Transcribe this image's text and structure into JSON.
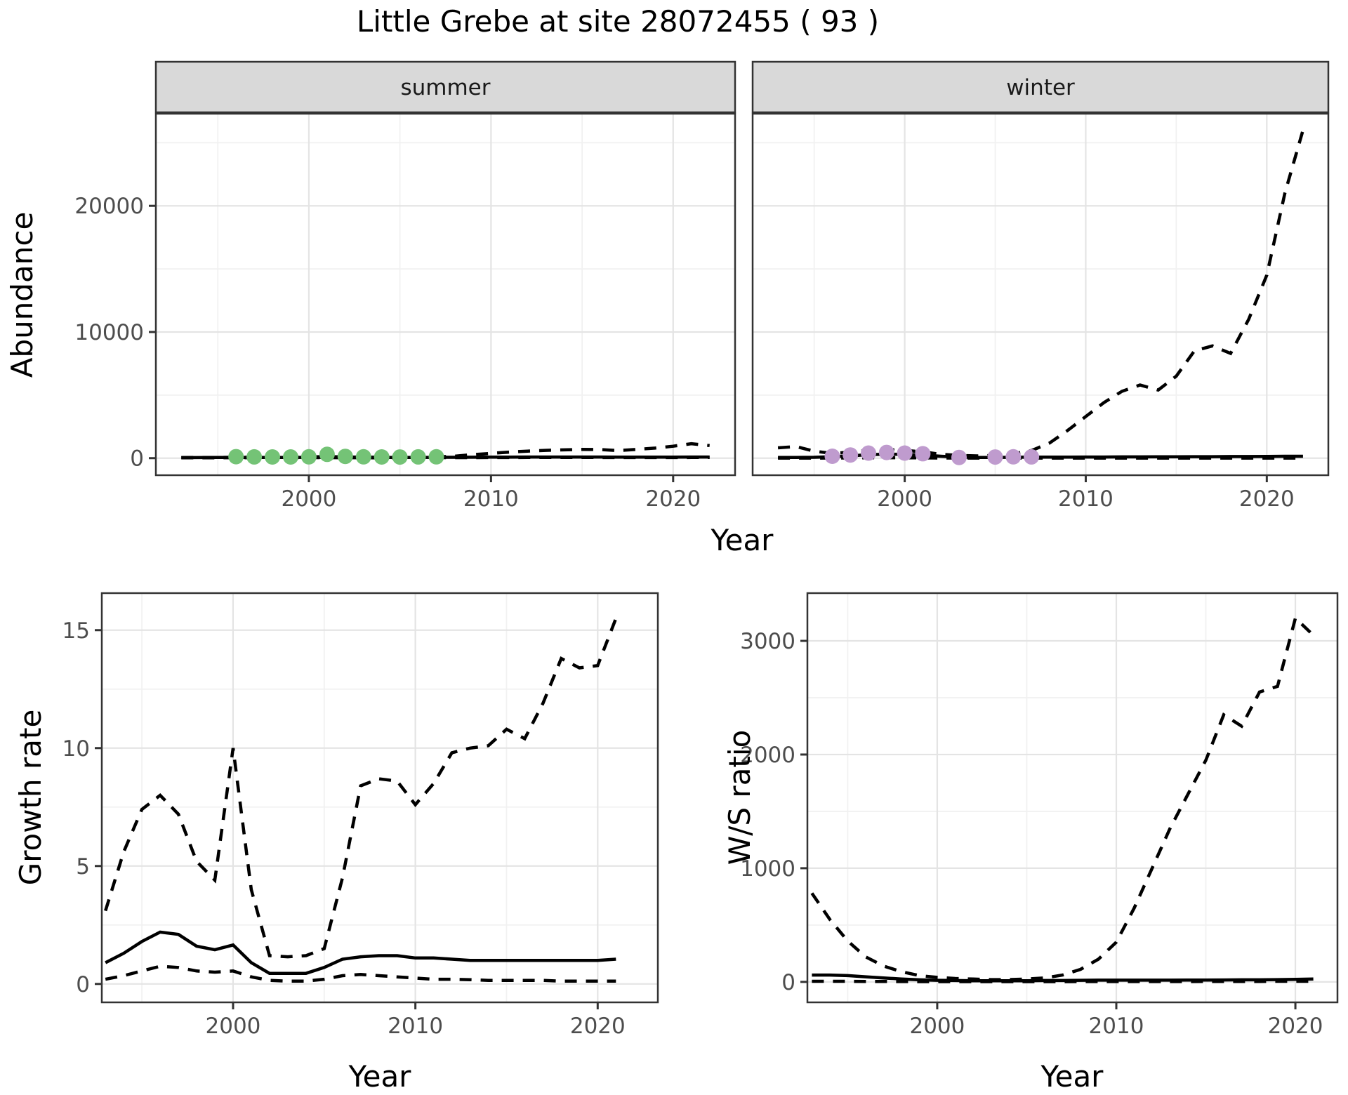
{
  "title": "Little Grebe at site 28072455 ( 93 )",
  "colors": {
    "summer_points": "#74c376",
    "winter_points": "#bf9bce",
    "line": "#000000",
    "grid_major": "#e4e4e4",
    "grid_minor": "#f1f1f1",
    "panel_border": "#333333",
    "strip_bg": "#d9d9d9",
    "tick_text": "#4d4d4d",
    "title_text": "#000000"
  },
  "chart_data": [
    {
      "id": "abundance-summer",
      "type": "line",
      "facet_label": "summer",
      "xlabel": "Year",
      "ylabel": "Abundance",
      "x_ticks": [
        2000,
        2010,
        2020
      ],
      "x_minor": [
        1995,
        2005,
        2015
      ],
      "y_ticks": [
        0,
        10000,
        20000
      ],
      "y_minor": [
        5000,
        15000,
        25000
      ],
      "xlim": [
        1991.6,
        2023.4
      ],
      "ylim": [
        -1350,
        27300
      ],
      "series": [
        {
          "name": "median",
          "style": "solid",
          "years": [
            1993,
            1994,
            1995,
            1996,
            1997,
            1998,
            1999,
            2000,
            2001,
            2002,
            2003,
            2004,
            2005,
            2006,
            2007,
            2008,
            2009,
            2010,
            2011,
            2012,
            2013,
            2014,
            2015,
            2016,
            2017,
            2018,
            2019,
            2020,
            2021,
            2022
          ],
          "values": [
            40,
            45,
            50,
            55,
            60,
            60,
            60,
            65,
            70,
            60,
            55,
            55,
            55,
            60,
            65,
            70,
            75,
            80,
            85,
            90,
            90,
            90,
            90,
            90,
            85,
            85,
            85,
            85,
            90,
            90
          ]
        },
        {
          "name": "upper-ci",
          "style": "dashed",
          "years": [
            1993,
            1994,
            1995,
            1996,
            1997,
            1998,
            1999,
            2000,
            2001,
            2002,
            2003,
            2004,
            2005,
            2006,
            2007,
            2008,
            2009,
            2010,
            2011,
            2012,
            2013,
            2014,
            2015,
            2016,
            2017,
            2018,
            2019,
            2020,
            2021,
            2022
          ],
          "values": [
            45,
            55,
            60,
            70,
            75,
            80,
            80,
            90,
            130,
            90,
            75,
            75,
            75,
            85,
            95,
            160,
            280,
            380,
            480,
            560,
            620,
            660,
            700,
            680,
            600,
            700,
            800,
            950,
            1150,
            1000
          ]
        },
        {
          "name": "lower-ci",
          "style": "dashed",
          "years": [
            1993,
            1994,
            1995,
            1996,
            1997,
            1998,
            1999,
            2000,
            2001,
            2002,
            2003,
            2004,
            2005,
            2006,
            2007,
            2008,
            2009,
            2010,
            2011,
            2012,
            2013,
            2014,
            2015,
            2016,
            2017,
            2018,
            2019,
            2020,
            2021,
            2022
          ],
          "values": [
            25,
            28,
            30,
            33,
            35,
            35,
            35,
            38,
            40,
            35,
            32,
            32,
            32,
            35,
            38,
            40,
            42,
            45,
            48,
            50,
            50,
            50,
            50,
            50,
            48,
            48,
            48,
            48,
            50,
            50
          ]
        }
      ],
      "points": {
        "name": "observed-counts-summer",
        "color_key": "summer_points",
        "years": [
          1996,
          1997,
          1998,
          1999,
          2000,
          2001,
          2002,
          2003,
          2004,
          2005,
          2006,
          2007
        ],
        "values": [
          120,
          100,
          95,
          95,
          105,
          300,
          140,
          105,
          95,
          90,
          100,
          110
        ]
      }
    },
    {
      "id": "abundance-winter",
      "type": "line",
      "facet_label": "winter",
      "xlabel": "Year",
      "ylabel": "Abundance",
      "x_ticks": [
        2000,
        2010,
        2020
      ],
      "x_minor": [
        1995,
        2005,
        2015
      ],
      "y_ticks": [
        0,
        10000,
        20000
      ],
      "y_minor": [
        5000,
        15000,
        25000
      ],
      "xlim": [
        1991.6,
        2023.4
      ],
      "ylim": [
        -1350,
        27300
      ],
      "series": [
        {
          "name": "median",
          "style": "solid",
          "years": [
            1993,
            1994,
            1995,
            1996,
            1997,
            1998,
            1999,
            2000,
            2001,
            2002,
            2003,
            2004,
            2005,
            2006,
            2007,
            2008,
            2009,
            2010,
            2011,
            2012,
            2013,
            2014,
            2015,
            2016,
            2017,
            2018,
            2019,
            2020,
            2021,
            2022
          ],
          "values": [
            50,
            60,
            70,
            120,
            180,
            280,
            320,
            300,
            250,
            150,
            80,
            60,
            60,
            70,
            80,
            80,
            80,
            90,
            90,
            100,
            100,
            110,
            110,
            120,
            120,
            130,
            130,
            140,
            150,
            150
          ]
        },
        {
          "name": "upper-ci",
          "style": "dashed",
          "years": [
            1993,
            1994,
            1995,
            1996,
            1997,
            1998,
            1999,
            2000,
            2001,
            2002,
            2003,
            2004,
            2005,
            2006,
            2007,
            2008,
            2009,
            2010,
            2011,
            2012,
            2013,
            2014,
            2015,
            2016,
            2017,
            2018,
            2019,
            2020,
            2021,
            2022
          ],
          "values": [
            820,
            920,
            550,
            380,
            480,
            620,
            680,
            620,
            500,
            300,
            220,
            180,
            220,
            350,
            600,
            1200,
            2200,
            3300,
            4400,
            5300,
            5800,
            5400,
            6500,
            8500,
            8900,
            8300,
            11000,
            14500,
            21000,
            26000
          ]
        },
        {
          "name": "lower-ci",
          "style": "dashed",
          "years": [
            1993,
            1994,
            1995,
            1996,
            1997,
            1998,
            1999,
            2000,
            2001,
            2002,
            2003,
            2004,
            2005,
            2006,
            2007,
            2008,
            2009,
            2010,
            2011,
            2012,
            2013,
            2014,
            2015,
            2016,
            2017,
            2018,
            2019,
            2020,
            2021,
            2022
          ],
          "values": [
            10,
            10,
            10,
            15,
            20,
            30,
            35,
            30,
            25,
            15,
            10,
            8,
            8,
            8,
            10,
            10,
            10,
            10,
            10,
            10,
            10,
            10,
            10,
            10,
            10,
            10,
            10,
            10,
            10,
            10
          ]
        }
      ],
      "points": {
        "name": "observed-counts-winter",
        "color_key": "winter_points",
        "years": [
          1996,
          1997,
          1998,
          1999,
          2000,
          2001,
          2003,
          2005,
          2006,
          2007
        ],
        "values": [
          150,
          250,
          400,
          450,
          400,
          350,
          60,
          90,
          110,
          100
        ]
      }
    },
    {
      "id": "growth-rate",
      "type": "line",
      "facet_label": "",
      "xlabel": "Year",
      "ylabel": "Growth rate",
      "x_ticks": [
        2000,
        2010,
        2020
      ],
      "x_minor": [
        1995,
        2005,
        2015
      ],
      "y_ticks": [
        0,
        5,
        10,
        15
      ],
      "y_minor": [
        2.5,
        7.5,
        12.5
      ],
      "xlim": [
        1992.8,
        2023.3
      ],
      "ylim": [
        -0.78,
        16.57
      ],
      "series": [
        {
          "name": "median",
          "style": "solid",
          "years": [
            1993,
            1994,
            1995,
            1996,
            1997,
            1998,
            1999,
            2000,
            2001,
            2002,
            2003,
            2004,
            2005,
            2006,
            2007,
            2008,
            2009,
            2010,
            2011,
            2012,
            2013,
            2014,
            2015,
            2016,
            2017,
            2018,
            2019,
            2020,
            2021
          ],
          "values": [
            0.9,
            1.3,
            1.8,
            2.2,
            2.1,
            1.6,
            1.45,
            1.65,
            0.9,
            0.45,
            0.45,
            0.45,
            0.7,
            1.05,
            1.15,
            1.2,
            1.2,
            1.1,
            1.1,
            1.05,
            1.0,
            1.0,
            1.0,
            1.0,
            1.0,
            1.0,
            1.0,
            1.0,
            1.05
          ]
        },
        {
          "name": "upper-ci",
          "style": "dashed",
          "years": [
            1993,
            1994,
            1995,
            1996,
            1997,
            1998,
            1999,
            2000,
            2001,
            2002,
            2003,
            2004,
            2005,
            2006,
            2007,
            2008,
            2009,
            2010,
            2011,
            2012,
            2013,
            2014,
            2015,
            2016,
            2017,
            2018,
            2019,
            2020,
            2021
          ],
          "values": [
            3.1,
            5.6,
            7.4,
            8.0,
            7.2,
            5.2,
            4.4,
            10.0,
            4.0,
            1.2,
            1.15,
            1.2,
            1.5,
            4.5,
            8.4,
            8.7,
            8.6,
            7.6,
            8.5,
            9.8,
            10.0,
            10.1,
            10.8,
            10.4,
            11.9,
            13.8,
            13.4,
            13.5,
            15.5
          ]
        },
        {
          "name": "lower-ci",
          "style": "dashed",
          "years": [
            1993,
            1994,
            1995,
            1996,
            1997,
            1998,
            1999,
            2000,
            2001,
            2002,
            2003,
            2004,
            2005,
            2006,
            2007,
            2008,
            2009,
            2010,
            2011,
            2012,
            2013,
            2014,
            2015,
            2016,
            2017,
            2018,
            2019,
            2020,
            2021
          ],
          "values": [
            0.2,
            0.35,
            0.55,
            0.75,
            0.7,
            0.55,
            0.5,
            0.55,
            0.3,
            0.15,
            0.12,
            0.12,
            0.2,
            0.35,
            0.4,
            0.35,
            0.3,
            0.25,
            0.2,
            0.2,
            0.18,
            0.15,
            0.15,
            0.15,
            0.15,
            0.12,
            0.12,
            0.12,
            0.12
          ]
        }
      ],
      "points": null
    },
    {
      "id": "ws-ratio",
      "type": "line",
      "facet_label": "",
      "xlabel": "Year",
      "ylabel": "W/S ratio",
      "x_ticks": [
        2000,
        2010,
        2020
      ],
      "x_minor": [
        1995,
        2005,
        2015
      ],
      "y_ticks": [
        0,
        1000,
        2000,
        3000
      ],
      "y_minor": [
        500,
        1500,
        2500
      ],
      "xlim": [
        1992.75,
        2022.35
      ],
      "ylim": [
        -180,
        3420
      ],
      "series": [
        {
          "name": "median",
          "style": "solid",
          "years": [
            1993,
            1994,
            1995,
            1996,
            1997,
            1998,
            1999,
            2000,
            2001,
            2002,
            2003,
            2004,
            2005,
            2006,
            2007,
            2008,
            2009,
            2010,
            2011,
            2012,
            2013,
            2014,
            2015,
            2016,
            2017,
            2018,
            2019,
            2020,
            2021
          ],
          "values": [
            60,
            60,
            55,
            45,
            35,
            25,
            18,
            14,
            12,
            10,
            10,
            10,
            10,
            12,
            12,
            14,
            15,
            15,
            15,
            15,
            15,
            16,
            16,
            17,
            18,
            18,
            20,
            22,
            25
          ]
        },
        {
          "name": "upper-ci",
          "style": "dashed",
          "years": [
            1993,
            1994,
            1995,
            1996,
            1997,
            1998,
            1999,
            2000,
            2001,
            2002,
            2003,
            2004,
            2005,
            2006,
            2007,
            2008,
            2009,
            2010,
            2011,
            2012,
            2013,
            2014,
            2015,
            2016,
            2017,
            2018,
            2019,
            2020,
            2021
          ],
          "values": [
            780,
            550,
            360,
            220,
            140,
            90,
            55,
            40,
            30,
            25,
            20,
            20,
            25,
            35,
            60,
            110,
            200,
            350,
            650,
            1000,
            1350,
            1650,
            1950,
            2350,
            2250,
            2550,
            2600,
            3200,
            3050
          ]
        },
        {
          "name": "lower-ci",
          "style": "dashed",
          "years": [
            1993,
            1994,
            1995,
            1996,
            1997,
            1998,
            1999,
            2000,
            2001,
            2002,
            2003,
            2004,
            2005,
            2006,
            2007,
            2008,
            2009,
            2010,
            2011,
            2012,
            2013,
            2014,
            2015,
            2016,
            2017,
            2018,
            2019,
            2020,
            2021
          ],
          "values": [
            5,
            5,
            5,
            4,
            4,
            3,
            2,
            2,
            2,
            2,
            2,
            2,
            2,
            2,
            2,
            3,
            3,
            3,
            3,
            3,
            3,
            3,
            4,
            4,
            4,
            4,
            5,
            5,
            5
          ]
        }
      ],
      "points": null
    }
  ]
}
